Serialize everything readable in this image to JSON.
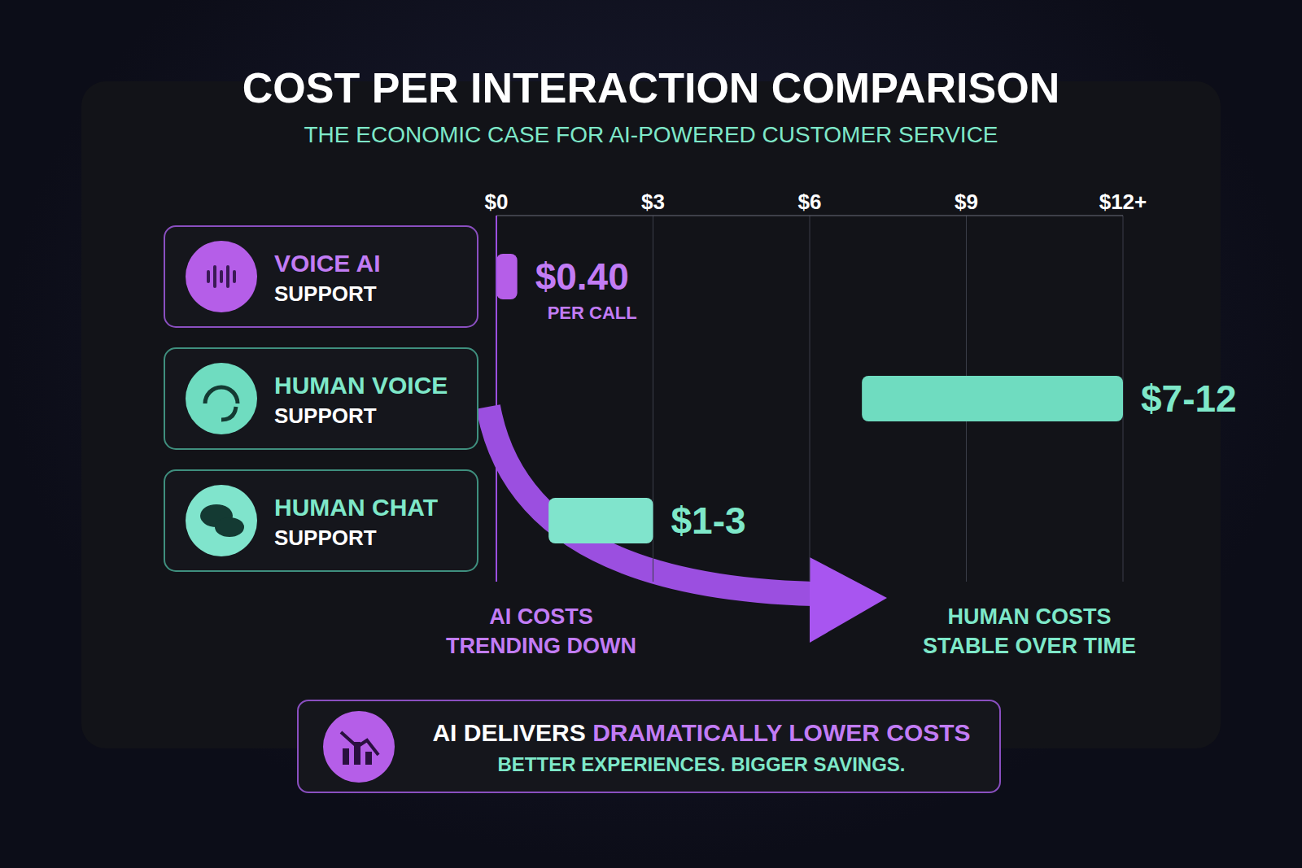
{
  "chart_data": {
    "type": "bar",
    "orientation": "horizontal",
    "title": "COST PER INTERACTION COMPARISON",
    "subtitle": "THE ECONOMIC CASE FOR AI-POWERED CUSTOMER SERVICE",
    "categories": [
      "VOICE AI SUPPORT",
      "HUMAN VOICE SUPPORT",
      "HUMAN CHAT SUPPORT"
    ],
    "values": [
      0.4,
      [
        7,
        12
      ],
      [
        1,
        3
      ]
    ],
    "value_labels": [
      "$0.40",
      "$7-12",
      "$1-3"
    ],
    "colors": [
      "#b55ee8",
      "#6fdcc0",
      "#80e4cc"
    ],
    "xlim": [
      0,
      12
    ],
    "xticks": [
      {
        "value": 0,
        "label": "$0"
      },
      {
        "value": 3,
        "label": "$3"
      },
      {
        "value": 6,
        "label": "$6"
      },
      {
        "value": 9,
        "label": "$9"
      },
      {
        "value": 12,
        "label": "$12+"
      }
    ],
    "grid": true,
    "data_labels": true,
    "annotations": {
      "per_call": "PER CALL",
      "left_axis_note": "AI COSTS TRENDING DOWN",
      "right_axis_note": "HUMAN COSTS STABLE OVER TIME",
      "footer_lead": "AI DELIVERS",
      "footer_highlight": "DRAMATICALLY LOWER COSTS",
      "footer_tagline": "BETTER EXPERIENCES. BIGGER SAVINGS."
    }
  }
}
